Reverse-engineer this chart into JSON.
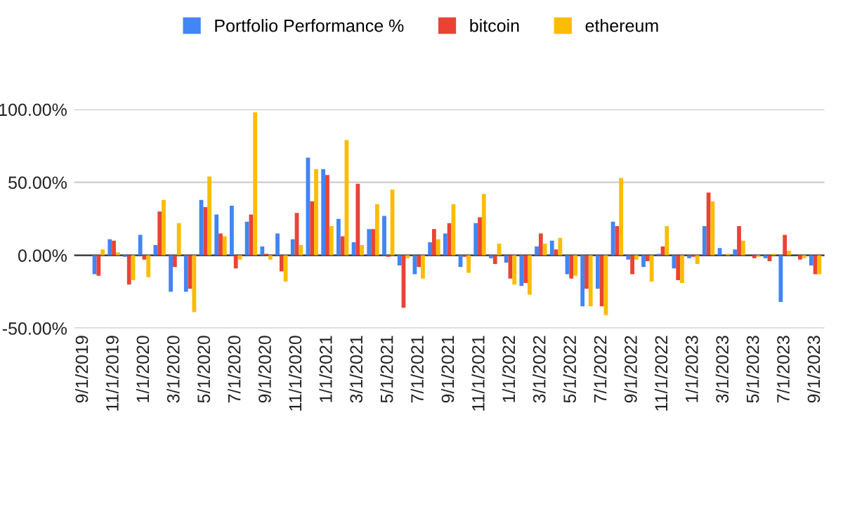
{
  "chart_data": {
    "type": "bar",
    "categories": [
      "9/1/2019",
      null,
      "11/1/2019",
      null,
      "1/1/2020",
      null,
      "3/1/2020",
      null,
      "5/1/2020",
      null,
      "7/1/2020",
      null,
      "9/1/2020",
      null,
      "11/1/2020",
      null,
      "1/1/2021",
      null,
      "3/1/2021",
      null,
      "5/1/2021",
      null,
      "7/1/2021",
      null,
      "9/1/2021",
      null,
      "11/1/2021",
      null,
      "1/1/2022",
      null,
      "3/1/2022",
      null,
      "5/1/2022",
      null,
      "7/1/2022",
      null,
      "9/1/2022",
      null,
      "11/1/2022",
      null,
      "1/1/2023",
      null,
      "3/1/2023",
      null,
      "5/1/2023",
      null,
      "7/1/2023",
      null,
      "9/1/2023"
    ],
    "series": [
      {
        "name": "Portfolio Performance %",
        "color": "#4285f4",
        "values": [
          null,
          -13,
          11,
          -1,
          14,
          7,
          -25,
          -25,
          38,
          28,
          34,
          23,
          6,
          15,
          11,
          67,
          59,
          25,
          9,
          18,
          27,
          -7,
          -13,
          9,
          15,
          -8,
          22,
          -2,
          -5,
          -21,
          6,
          10,
          -13,
          -35,
          -23,
          23,
          -3,
          -8,
          1,
          -9,
          -2,
          20,
          5,
          4,
          0,
          -2,
          -32,
          0,
          -7
        ]
      },
      {
        "name": "bitcoin",
        "color": "#ea4335",
        "values": [
          null,
          -14,
          10,
          -20,
          -3,
          30,
          -8,
          -23,
          33,
          15,
          -9,
          28,
          1,
          -11,
          29,
          37,
          55,
          13,
          49,
          18,
          -1,
          -36,
          -8,
          18,
          22,
          -1,
          26,
          -6,
          -16,
          -19,
          15,
          4,
          -16,
          -23,
          -35,
          20,
          -13,
          -4,
          6,
          -17,
          -1,
          43,
          0,
          20,
          -2,
          -4,
          14,
          -3,
          -13
        ]
      },
      {
        "name": "ethereum",
        "color": "#fbbc04",
        "values": [
          null,
          4,
          2,
          -17,
          -15,
          38,
          22,
          -39,
          54,
          13,
          -3,
          98,
          -3,
          -18,
          7,
          59,
          20,
          79,
          7,
          35,
          45,
          -2,
          -16,
          11,
          35,
          -12,
          42,
          8,
          -20,
          -27,
          8,
          12,
          -14,
          -35,
          -41,
          53,
          -3,
          -18,
          20,
          -19,
          -6,
          37,
          1,
          10,
          -1,
          1,
          3,
          -2,
          -13
        ]
      }
    ],
    "ylim": [
      -50,
      100
    ],
    "yticks": [
      {
        "value": -50,
        "label": "-50.00%"
      },
      {
        "value": 0,
        "label": "0.00%"
      },
      {
        "value": 50,
        "label": "50.00%"
      },
      {
        "value": 100,
        "label": "100.00%"
      }
    ],
    "grid": "y",
    "legend": "top"
  }
}
